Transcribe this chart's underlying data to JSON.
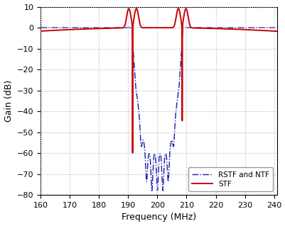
{
  "title": "",
  "xlabel": "Frequency (MHz)",
  "ylabel": "Gain (dB)",
  "xlim": [
    160,
    241
  ],
  "ylim": [
    -80,
    10
  ],
  "xticks": [
    160,
    170,
    180,
    190,
    200,
    210,
    220,
    230,
    240
  ],
  "yticks": [
    -80,
    -70,
    -60,
    -50,
    -40,
    -30,
    -20,
    -10,
    0,
    10
  ],
  "stf_color": "#cc0000",
  "ntf_color": "#1a1aaa",
  "background_color": "#ffffff",
  "grid_color": "#aab4cc",
  "legend_labels": [
    "RSTF and NTF",
    "STF"
  ],
  "fc1": 191.5,
  "fc2": 208.5,
  "f_min": 160,
  "f_max": 241
}
